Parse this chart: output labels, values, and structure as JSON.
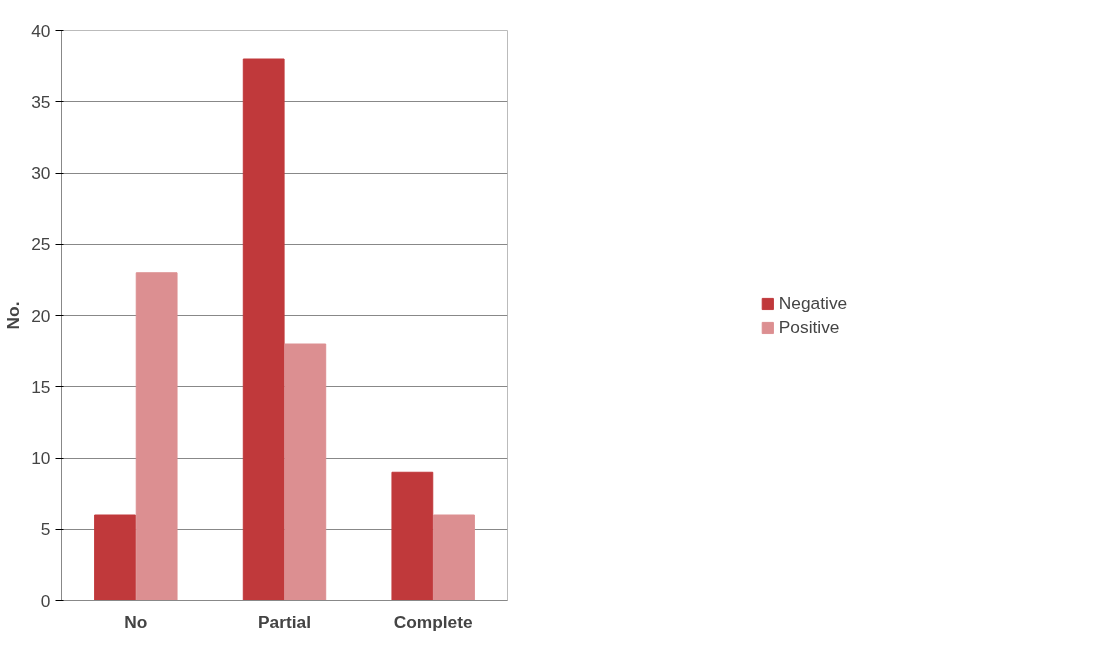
{
  "chart_data": {
    "type": "bar",
    "ylabel": "No.",
    "categories": [
      "No",
      "Partial",
      "Complete"
    ],
    "series": [
      {
        "name": "Negative",
        "color": "#c0393b",
        "values": [
          6,
          38,
          9
        ]
      },
      {
        "name": "Positive",
        "color": "#dc8f91",
        "values": [
          23,
          18,
          6
        ]
      }
    ],
    "ylim": [
      0,
      40
    ],
    "yticks": [
      0,
      5,
      10,
      15,
      20,
      25,
      30,
      35,
      40
    ],
    "grid": "y",
    "legend": "right"
  }
}
